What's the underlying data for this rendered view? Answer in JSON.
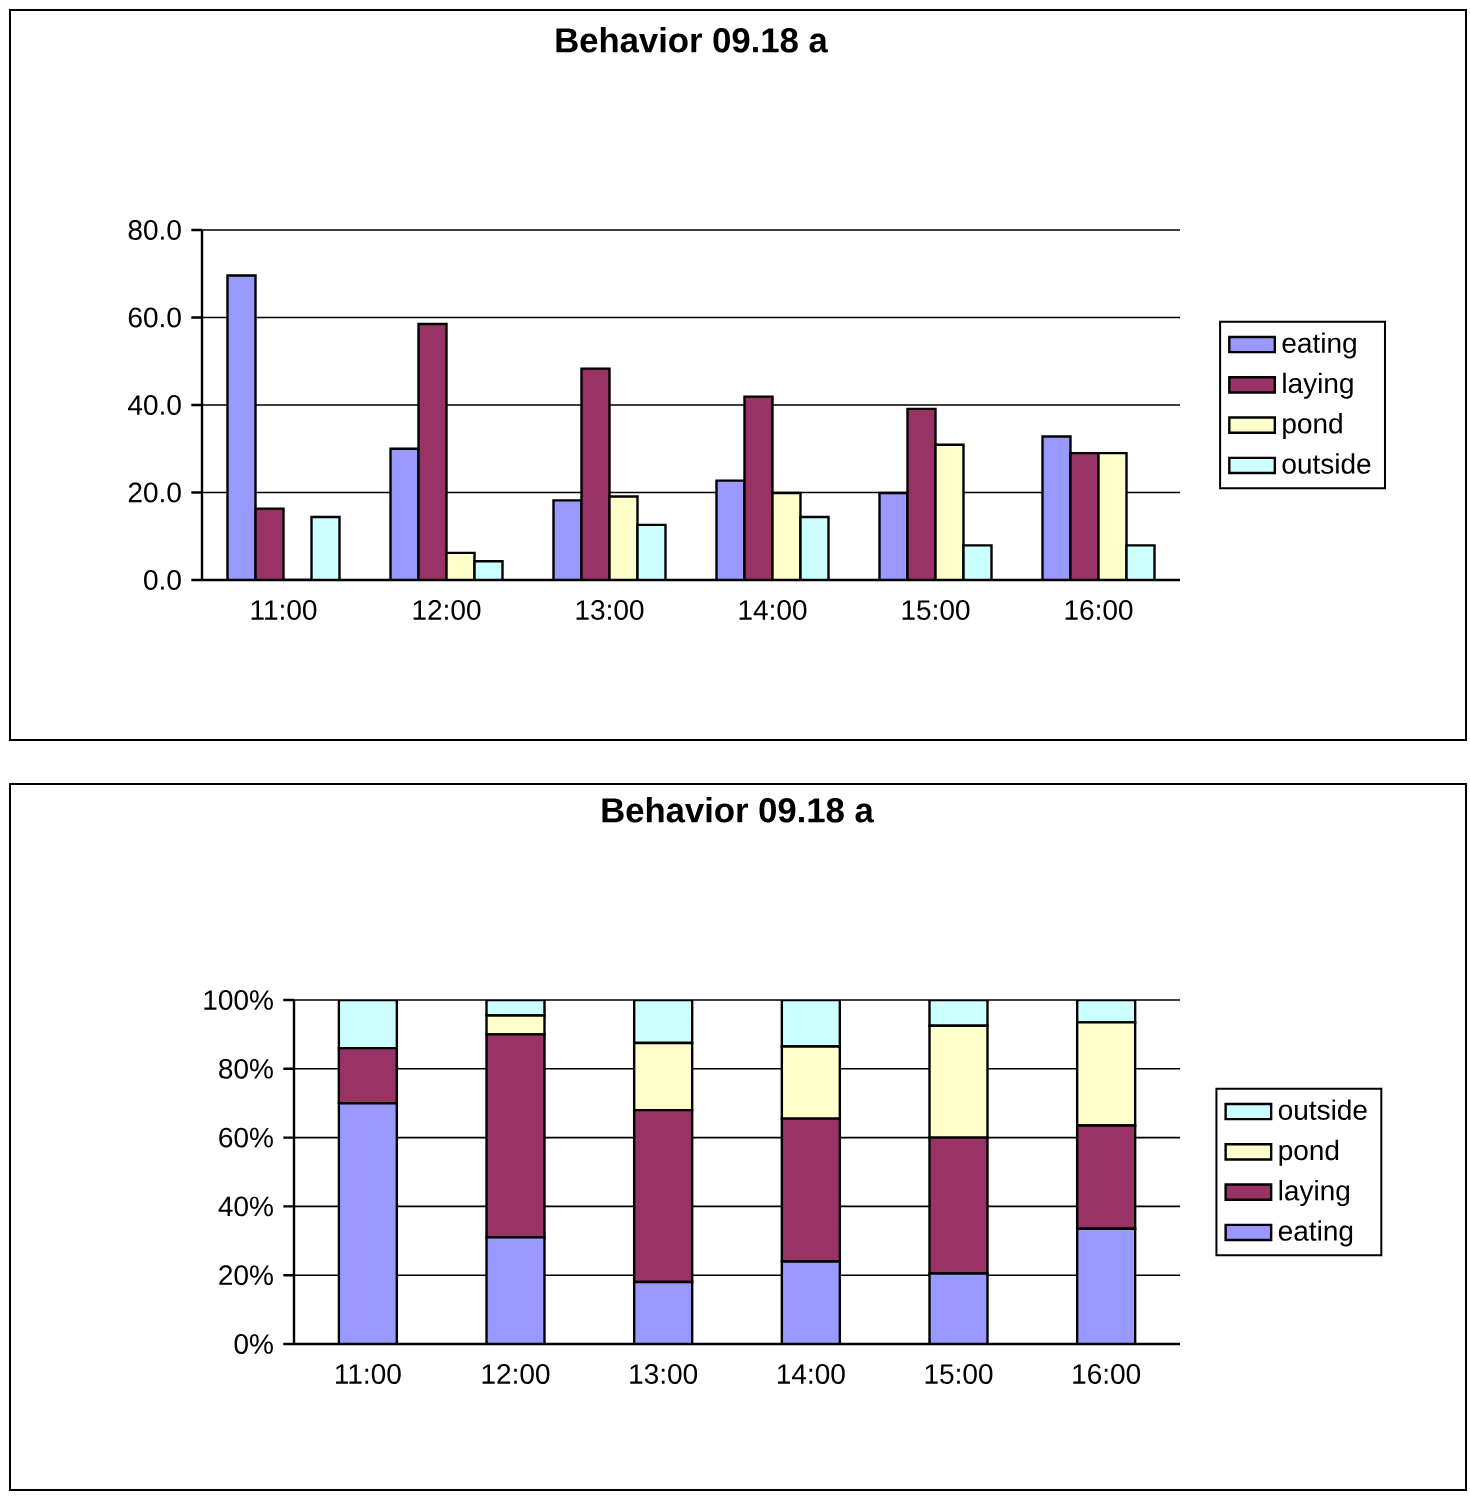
{
  "chart_data": [
    {
      "type": "bar",
      "title": "Behavior 09.18 a",
      "categories": [
        "11:00",
        "12:00",
        "13:00",
        "14:00",
        "15:00",
        "16:00"
      ],
      "series": [
        {
          "name": "eating",
          "color": "#9999ff",
          "values": [
            69.6,
            30.0,
            18.2,
            22.7,
            19.9,
            32.8
          ]
        },
        {
          "name": "laying",
          "color": "#993366",
          "values": [
            16.3,
            58.5,
            48.3,
            41.9,
            39.1,
            29.0
          ]
        },
        {
          "name": "pond",
          "color": "#ffffcc",
          "values": [
            0,
            6.2,
            19.1,
            19.9,
            30.9,
            29.0
          ]
        },
        {
          "name": "outside",
          "color": "#ccffff",
          "values": [
            14.4,
            4.3,
            12.6,
            14.4,
            7.9,
            7.9
          ]
        }
      ],
      "ylim": [
        0,
        80
      ],
      "yticks": [
        {
          "value": 0,
          "label": "0.0"
        },
        {
          "value": 20,
          "label": "20.0"
        },
        {
          "value": 40,
          "label": "40.0"
        },
        {
          "value": 60,
          "label": "60.0"
        },
        {
          "value": 80,
          "label": "80.0"
        }
      ],
      "grid": "y",
      "legend": "right"
    },
    {
      "type": "bar",
      "title": "Behavior 09.18 a",
      "categories": [
        "11:00",
        "12:00",
        "13:00",
        "14:00",
        "15:00",
        "16:00"
      ],
      "stacked": true,
      "series": [
        {
          "name": "eating",
          "color": "#9999ff",
          "values": [
            70,
            31,
            18,
            24,
            20.5,
            33.5
          ]
        },
        {
          "name": "laying",
          "color": "#993366",
          "values": [
            16,
            59,
            50,
            41.5,
            39.5,
            30
          ]
        },
        {
          "name": "pond",
          "color": "#ffffcc",
          "values": [
            0,
            5.5,
            19.5,
            21,
            32.5,
            30
          ]
        },
        {
          "name": "outside",
          "color": "#ccffff",
          "values": [
            14,
            4.5,
            12.5,
            13.5,
            7.5,
            6.5
          ]
        }
      ],
      "ylim": [
        0,
        100
      ],
      "yticks": [
        {
          "value": 0,
          "label": "0%"
        },
        {
          "value": 20,
          "label": "20%"
        },
        {
          "value": 40,
          "label": "40%"
        },
        {
          "value": 60,
          "label": "60%"
        },
        {
          "value": 80,
          "label": "80%"
        },
        {
          "value": 100,
          "label": "100%"
        }
      ],
      "grid": "y",
      "legend": "right"
    }
  ]
}
